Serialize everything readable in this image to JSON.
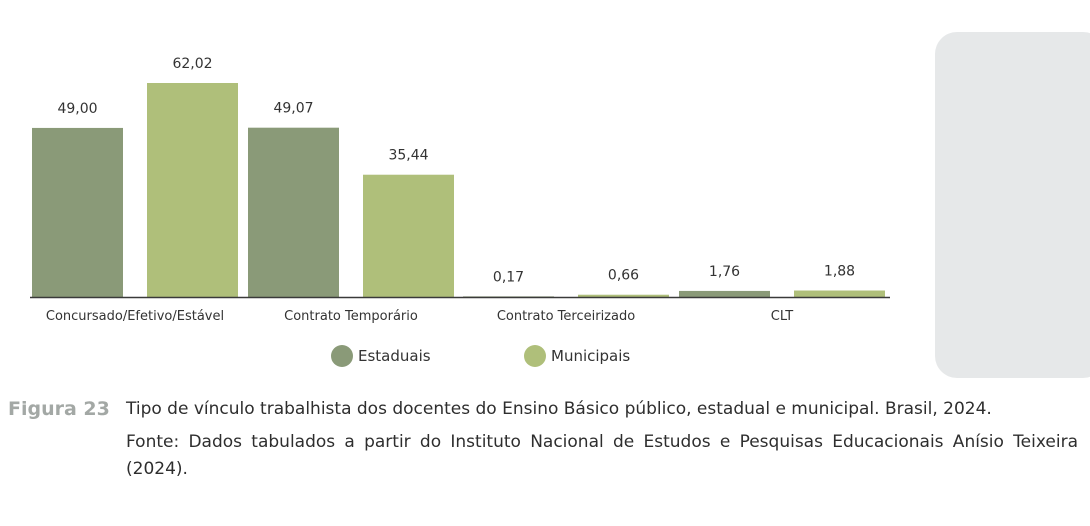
{
  "chart_data": {
    "type": "bar",
    "categories": [
      "Concursado/Efetivo/Estável",
      "Contrato Temporário",
      "Contrato Terceirizado",
      "CLT"
    ],
    "series": [
      {
        "name": "Estaduais",
        "values": [
          49.0,
          49.07,
          0.17,
          1.76
        ],
        "labels": [
          "49,00",
          "49,07",
          "0,17",
          "1,76"
        ],
        "color": "#8a9a78"
      },
      {
        "name": "Municipais",
        "values": [
          62.02,
          35.44,
          0.66,
          1.88
        ],
        "labels": [
          "62,02",
          "35,44",
          "0,66",
          "1,88"
        ],
        "color": "#afbf7a"
      }
    ],
    "ylim": [
      0,
      62.02
    ],
    "grid": false,
    "legend": "bottom-center"
  },
  "caption": {
    "label": "Figura 23",
    "text": "Tipo de vínculo trabalhista dos docentes do Ensino Básico público, estadual e municipal. Brasil, 2024.",
    "source": "Fonte: Dados tabulados a partir do Instituto Nacional de Estudos e Pesquisas Educacionais Anísio Teixeira (2024)."
  }
}
